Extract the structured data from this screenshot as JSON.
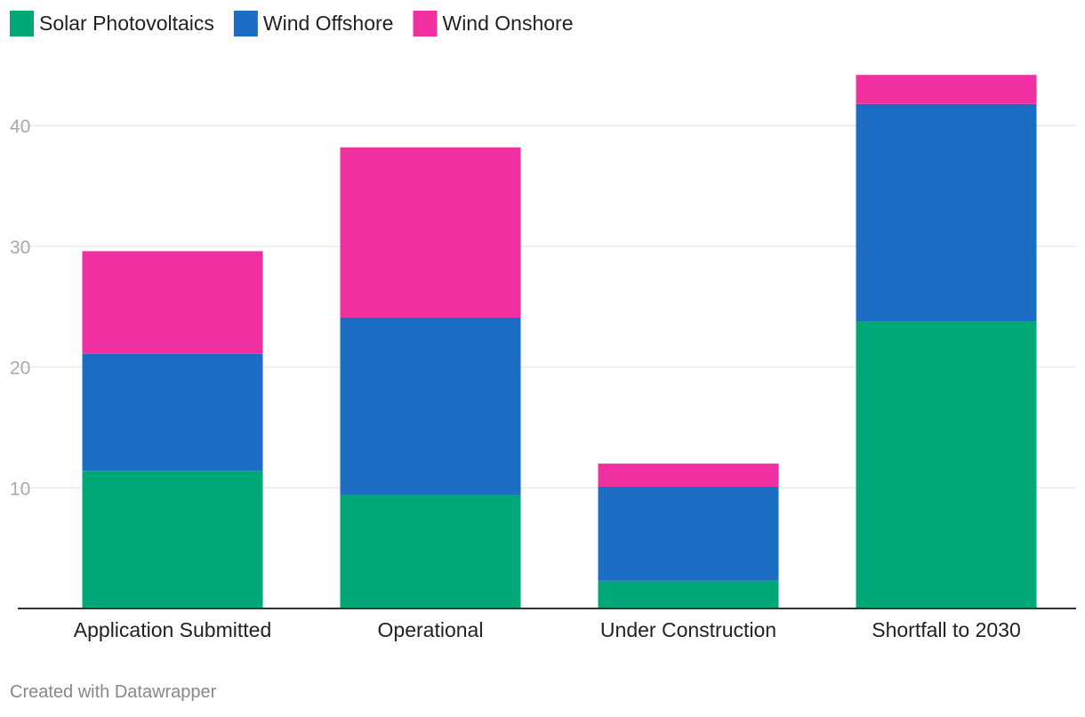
{
  "chart_data": {
    "type": "bar",
    "stacked": true,
    "title": "",
    "xlabel": "",
    "ylabel": "",
    "categories": [
      "Application Submitted",
      "Operational",
      "Under Construction",
      "Shortfall to 2030"
    ],
    "series": [
      {
        "name": "Solar Photovoltaics",
        "color": "#00a878",
        "values": [
          11.4,
          9.4,
          2.3,
          23.8
        ]
      },
      {
        "name": "Wind Offshore",
        "color": "#1c6ec4",
        "values": [
          9.7,
          14.7,
          7.8,
          18.0
        ]
      },
      {
        "name": "Wind Onshore",
        "color": "#f030a0",
        "values": [
          8.5,
          14.1,
          1.9,
          2.4
        ]
      }
    ],
    "ylim": [
      0,
      45
    ],
    "yticks": [
      10,
      20,
      30,
      40
    ],
    "grid": true,
    "legend_position": "top-left"
  },
  "footer": {
    "credit": "Created with Datawrapper"
  }
}
